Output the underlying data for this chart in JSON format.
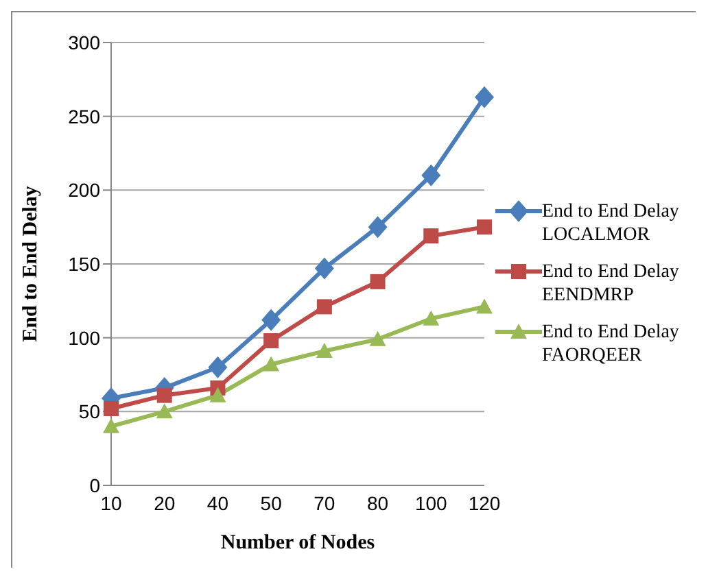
{
  "chart_data": {
    "type": "line",
    "xlabel": "Number of Nodes",
    "ylabel": "End to End Delay",
    "categories": [
      "10",
      "20",
      "40",
      "50",
      "70",
      "80",
      "100",
      "120"
    ],
    "series": [
      {
        "name": "End to End Delay LOCALMOR",
        "color": "#4a7ebb",
        "marker": "diamond",
        "values": [
          59,
          66,
          80,
          112,
          147,
          175,
          210,
          263
        ]
      },
      {
        "name": "End to End Delay EENDMRP",
        "color": "#be4b48",
        "marker": "square",
        "values": [
          52,
          61,
          66,
          98,
          121,
          138,
          169,
          175
        ]
      },
      {
        "name": "End to End Delay FAORQEER",
        "color": "#98b954",
        "marker": "triangle",
        "values": [
          40,
          50,
          61,
          82,
          91,
          99,
          113,
          121
        ]
      }
    ],
    "ylim": [
      0,
      300
    ],
    "yticks": [
      0,
      50,
      100,
      150,
      200,
      250,
      300
    ],
    "grid": "y",
    "legend": "right",
    "line_style": "solid"
  }
}
